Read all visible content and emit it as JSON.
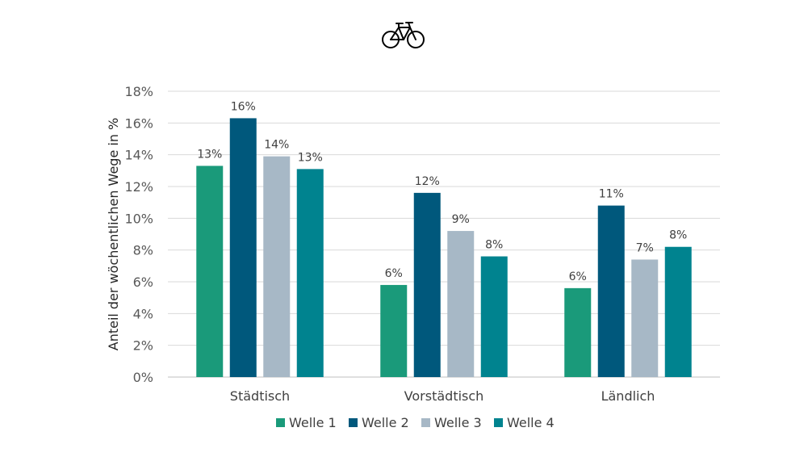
{
  "header": {
    "icon": "bicycle-icon"
  },
  "chart_data": {
    "type": "bar",
    "categories": [
      "Städtisch",
      "Vorstädtisch",
      "Ländlich"
    ],
    "series": [
      {
        "name": "Welle 1",
        "color": "#1a9a7a",
        "values": [
          13.3,
          5.8,
          5.6
        ],
        "labels": [
          "13%",
          "6%",
          "6%"
        ]
      },
      {
        "name": "Welle 2",
        "color": "#00587c",
        "values": [
          16.3,
          11.6,
          10.8
        ],
        "labels": [
          "16%",
          "12%",
          "11%"
        ]
      },
      {
        "name": "Welle 3",
        "color": "#a7b8c6",
        "values": [
          13.9,
          9.2,
          7.4
        ],
        "labels": [
          "14%",
          "9%",
          "7%"
        ]
      },
      {
        "name": "Welle 4",
        "color": "#00838f",
        "values": [
          13.1,
          7.6,
          8.2
        ],
        "labels": [
          "13%",
          "8%",
          "8%"
        ]
      }
    ],
    "yticks": [
      "0%",
      "2%",
      "4%",
      "6%",
      "8%",
      "10%",
      "12%",
      "14%",
      "16%",
      "18%"
    ],
    "ylim": [
      0,
      18
    ],
    "ylabel": "Anteil der wöchentlichen Wege in %",
    "xlabel": "",
    "grid": true,
    "legend": "bottom"
  }
}
